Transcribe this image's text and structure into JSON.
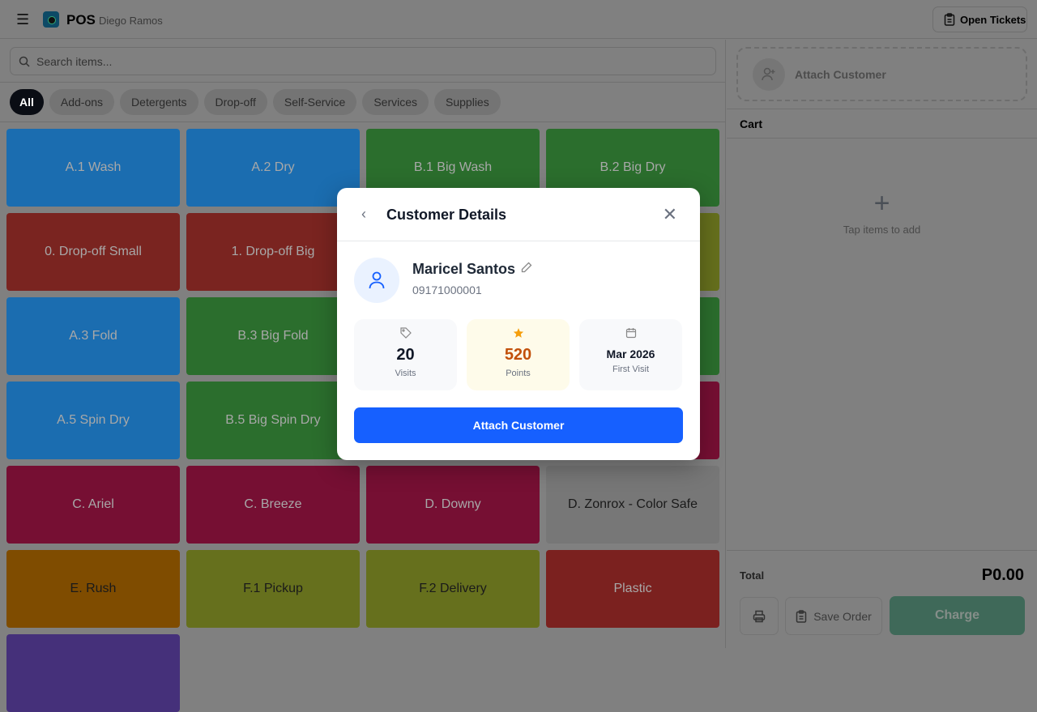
{
  "header": {
    "app_name": "POS",
    "user": "Diego Ramos",
    "open_tickets": "Open Tickets"
  },
  "search": {
    "placeholder": "Search items..."
  },
  "categories": [
    "All",
    "Add-ons",
    "Detergents",
    "Drop-off",
    "Self-Service",
    "Services",
    "Supplies"
  ],
  "active_category": "All",
  "items": [
    {
      "label": "A.1 Wash",
      "color": "#1b6db0"
    },
    {
      "label": "A.2 Dry",
      "color": "#1b6db0"
    },
    {
      "label": "B.1 Big Wash",
      "color": "#2b6e2d"
    },
    {
      "label": "B.2 Big Dry",
      "color": "#2b6e2d"
    },
    {
      "label": "0. Drop-off Small",
      "color": "#7a2420"
    },
    {
      "label": "1. Drop-off Big",
      "color": "#7a2420"
    },
    {
      "label": "",
      "color": "#7a2420"
    },
    {
      "label": "",
      "color": "#66701d"
    },
    {
      "label": "A.3 Fold",
      "color": "#1b6db0"
    },
    {
      "label": "B.3 Big Fold",
      "color": "#2b6e2d"
    },
    {
      "label": "",
      "color": "#2b6e2d"
    },
    {
      "label": "",
      "color": "#2b6e2d"
    },
    {
      "label": "A.5 Spin Dry",
      "color": "#1b6db0"
    },
    {
      "label": "B.5 Big Spin Dry",
      "color": "#2b6e2d"
    },
    {
      "label": "",
      "color": "#760f33"
    },
    {
      "label": "",
      "color": "#760f33"
    },
    {
      "label": "C. Ariel",
      "color": "#760f33"
    },
    {
      "label": "C. Breeze",
      "color": "#760f33"
    },
    {
      "label": "D. Downy",
      "color": "#760f33"
    },
    {
      "label": "D. Zonrox - Color Safe",
      "color": "#777777",
      "dark": true
    },
    {
      "label": "E. Rush",
      "color": "#7f4c00",
      "dark": true
    },
    {
      "label": "F.1 Pickup",
      "color": "#66701d",
      "dark": true
    },
    {
      "label": "F.2 Delivery",
      "color": "#66701d",
      "dark": true
    },
    {
      "label": "Plastic",
      "color": "#7b211f"
    },
    {
      "label": "",
      "color": "#45307a"
    }
  ],
  "cart": {
    "attach_customer": "Attach Customer",
    "title": "Cart",
    "empty_text": "Tap items to add",
    "total_label": "Total",
    "total_value": "P0.00",
    "save_order": "Save Order",
    "charge": "Charge"
  },
  "modal": {
    "title": "Customer Details",
    "customer_name": "Maricel Santos",
    "phone": "09171000001",
    "stats": [
      {
        "value": "20",
        "label": "Visits",
        "icon": "tag-icon"
      },
      {
        "value": "520",
        "label": "Points",
        "icon": "star-icon"
      },
      {
        "value": "Mar 2026",
        "label": "First Visit",
        "icon": "calendar-icon"
      }
    ],
    "attach_button": "Attach Customer",
    "accent": "#1660ff"
  }
}
